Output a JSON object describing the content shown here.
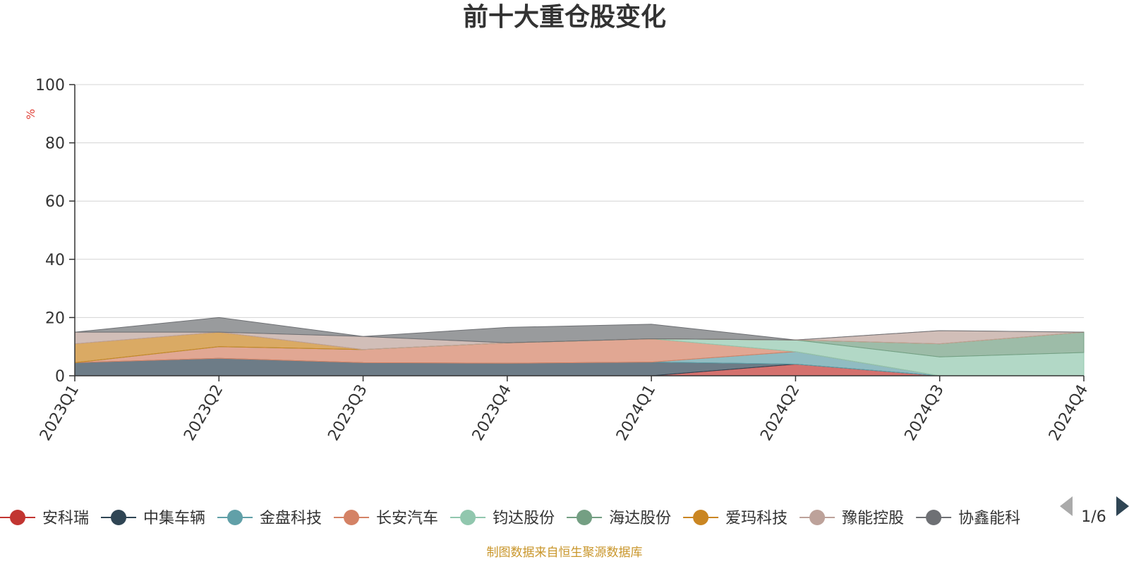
{
  "chart_data": {
    "type": "area",
    "stacked": true,
    "title": "前十大重仓股变化",
    "ylabel": "%",
    "ylim": [
      0,
      100
    ],
    "yticks": [
      0,
      20,
      40,
      60,
      80,
      100
    ],
    "grid": true,
    "categories": [
      "2023Q1",
      "2023Q2",
      "2023Q3",
      "2023Q4",
      "2024Q1",
      "2024Q2",
      "2024Q3",
      "2024Q4"
    ],
    "series": [
      {
        "name": "安科瑞",
        "color": "#c23531",
        "values": [
          0,
          0,
          0,
          0,
          0,
          4,
          0,
          0
        ]
      },
      {
        "name": "中集车辆",
        "color": "#2f4554",
        "values": [
          4.5,
          6,
          4.5,
          4.3,
          4.7,
          0,
          0,
          0
        ]
      },
      {
        "name": "金盘科技",
        "color": "#61a0a8",
        "values": [
          0,
          0,
          0,
          0,
          0,
          4.3,
          0,
          0
        ]
      },
      {
        "name": "长安汽车",
        "color": "#d48265",
        "values": [
          0,
          4,
          4.5,
          7,
          8,
          0,
          0,
          0
        ]
      },
      {
        "name": "钧达股份",
        "color": "#91c7ae",
        "values": [
          0,
          0,
          0,
          0,
          0,
          4,
          6.5,
          8
        ]
      },
      {
        "name": "海达股份",
        "color": "#749f83",
        "values": [
          0,
          0,
          0,
          0,
          0,
          0,
          4.5,
          7
        ]
      },
      {
        "name": "爱玛科技",
        "color": "#ca8622",
        "values": [
          6.5,
          5,
          0,
          0,
          0,
          0,
          0,
          0
        ]
      },
      {
        "name": "豫能控股",
        "color": "#bda29a",
        "values": [
          4,
          0,
          4.5,
          0,
          0,
          0,
          4.5,
          0
        ]
      },
      {
        "name": "协鑫能科",
        "color": "#6e7074",
        "values": [
          0,
          5,
          0,
          5.3,
          5,
          0,
          0,
          0
        ]
      }
    ],
    "legend": {
      "position": "bottom",
      "page": "1/6"
    },
    "source": "制图数据来自恒生聚源数据库"
  }
}
